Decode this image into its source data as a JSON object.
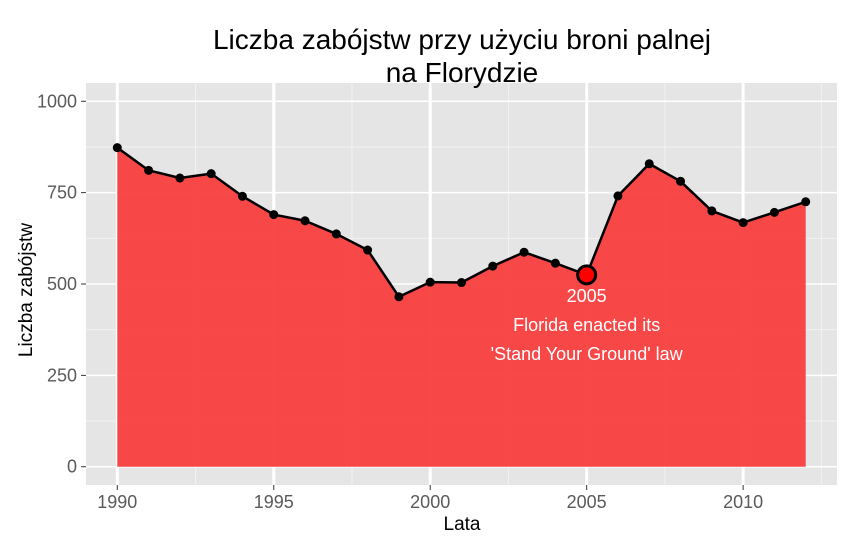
{
  "chart_data": {
    "type": "area",
    "title_lines": [
      "Liczba zabójstw przy użyciu broni palnej",
      "na Florydzie"
    ],
    "xlabel": "Lata",
    "ylabel": "Liczba zabójstw",
    "xlim": [
      1989.0,
      2013.0
    ],
    "ylim": [
      -50,
      1050
    ],
    "x_ticks": [
      1990,
      1995,
      2000,
      2005,
      2010
    ],
    "x_tick_labels": [
      "1990",
      "1995",
      "2000",
      "2005",
      "2010"
    ],
    "y_ticks": [
      0,
      250,
      500,
      750,
      1000
    ],
    "y_tick_labels": [
      "0",
      "250",
      "500",
      "750",
      "1000"
    ],
    "grid": true,
    "series": [
      {
        "x": [
          1990,
          1991,
          1992,
          1993,
          1994,
          1995,
          1996,
          1997,
          1998,
          1999,
          2000,
          2001,
          2002,
          2003,
          2004,
          2005,
          2006,
          2007,
          2008,
          2009,
          2010,
          2011,
          2012
        ],
        "values": [
          873,
          811,
          790,
          802,
          740,
          690,
          673,
          637,
          593,
          465,
          505,
          504,
          549,
          587,
          557,
          525,
          741,
          829,
          781,
          700,
          668,
          696,
          725
        ]
      }
    ],
    "colors": {
      "panel_bg": "#e5e5e5",
      "grid_major": "#ffffff",
      "grid_minor": "#f2f2f2",
      "area_fill": "#f93e3e",
      "line": "#000000",
      "highlight": "#ff0000"
    },
    "annotation": {
      "x": 2005,
      "y": 525,
      "lines": [
        "2005",
        "Florida enacted its",
        "'Stand Your Ground' law"
      ]
    }
  }
}
